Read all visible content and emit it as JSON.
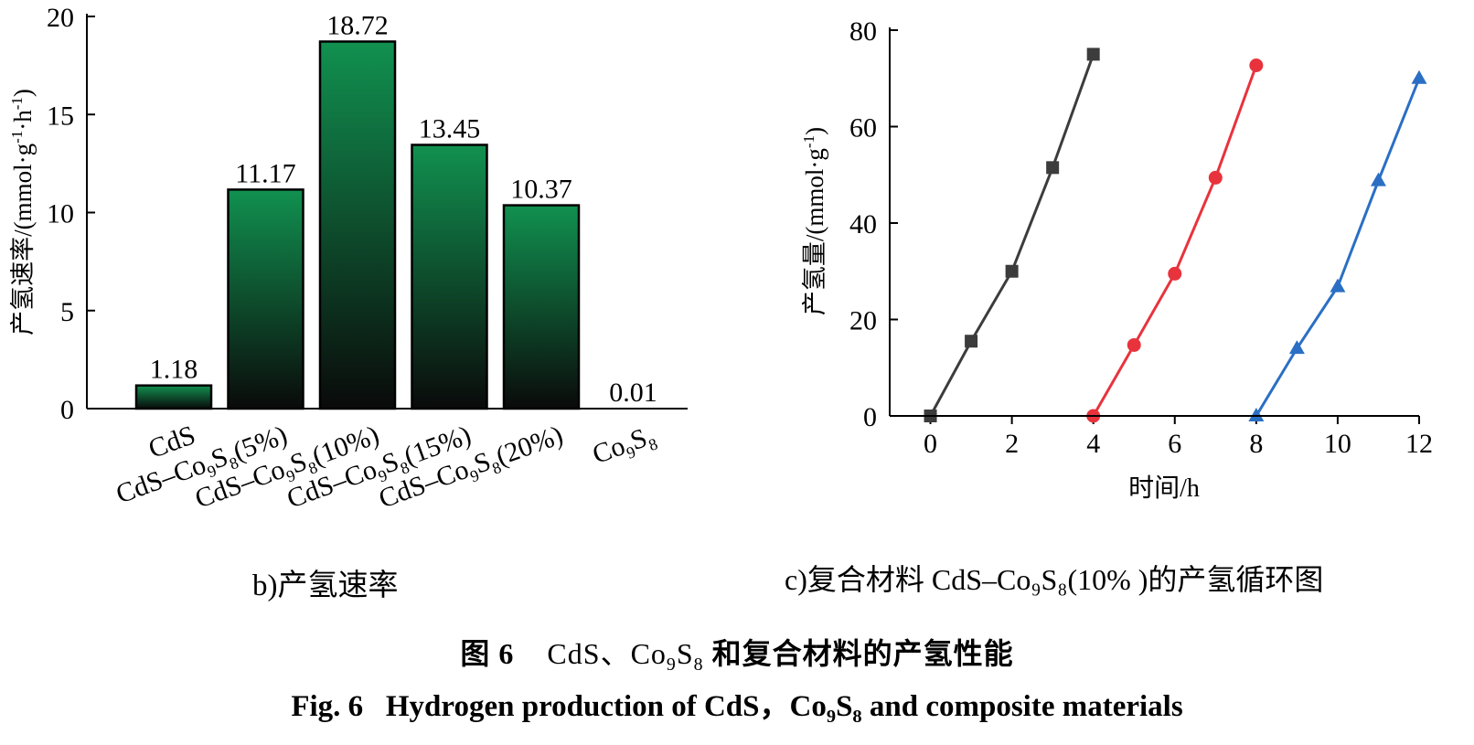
{
  "left_panel": {
    "caption": "b)产氢速率"
  },
  "right_panel": {
    "caption": "c)复合材料 CdS–Co₉S₈(10% )的产氢循环图"
  },
  "figure_caption_zh": {
    "prefix": "图 6",
    "cds": "CdS、Co",
    "sub9": "9",
    "s": "S",
    "sub8": "8",
    "suffix": "和复合材料的产氢性能"
  },
  "figure_caption_en": {
    "prefix": "Fig. 6   Hydrogen production of CdS，Co",
    "sub9": "9",
    "s": "S",
    "sub8": "8",
    "suffix": " and composite materials"
  },
  "colors": {
    "bar_top": "#119150",
    "bar_bottom": "#0a0a0a",
    "series_0": "#3c3c3c",
    "series_1": "#e8333d",
    "series_2": "#2a6fc4"
  },
  "chart_data": [
    {
      "type": "bar",
      "categories": [
        {
          "base": "CdS",
          "parts": []
        },
        {
          "base": "CdS–Co",
          "parts": [
            [
              "9",
              "S"
            ],
            [
              "8",
              "(5%)"
            ]
          ]
        },
        {
          "base": "CdS–Co",
          "parts": [
            [
              "9",
              "S"
            ],
            [
              "8",
              "(10%)"
            ]
          ]
        },
        {
          "base": "CdS–Co",
          "parts": [
            [
              "9",
              "S"
            ],
            [
              "8",
              "(15%)"
            ]
          ]
        },
        {
          "base": "CdS–Co",
          "parts": [
            [
              "9",
              "S"
            ],
            [
              "8",
              "(20%)"
            ]
          ]
        },
        {
          "base": "Co",
          "parts": [
            [
              "9",
              "S"
            ],
            [
              "8",
              ""
            ]
          ]
        }
      ],
      "values": [
        1.18,
        11.17,
        18.72,
        13.45,
        10.37,
        0.01
      ],
      "value_labels": [
        "1.18",
        "11.17",
        "18.72",
        "13.45",
        "10.37",
        "0.01"
      ],
      "ylabel": {
        "text": "产氢速率/(mmol·g",
        "sup1": "-1",
        "mid": "·h",
        "sup2": "-1",
        "end": ")"
      },
      "ylim": [
        0,
        20
      ],
      "yticks": [
        0,
        5,
        10,
        15,
        20
      ],
      "grid": false
    },
    {
      "type": "line",
      "xlabel": "时间/h",
      "ylabel": {
        "text": "产氢量/(mmol·g",
        "sup1": "-1",
        "end": ")"
      },
      "xlim": [
        -1,
        12
      ],
      "ylim": [
        0,
        80
      ],
      "xticks": [
        0,
        2,
        4,
        6,
        8,
        10,
        12
      ],
      "yticks": [
        0,
        20,
        40,
        60,
        80
      ],
      "grid": false,
      "series": [
        {
          "marker": "square",
          "x": [
            0,
            1,
            2,
            3,
            4
          ],
          "y": [
            0,
            15.5,
            30,
            51.5,
            75
          ]
        },
        {
          "marker": "circle",
          "x": [
            4,
            5,
            6,
            7,
            8
          ],
          "y": [
            0,
            14.7,
            29.5,
            49.4,
            72.7
          ]
        },
        {
          "marker": "triangle",
          "x": [
            8,
            9,
            10,
            11,
            12
          ],
          "y": [
            0,
            14,
            26.8,
            48.8,
            70
          ]
        }
      ]
    }
  ]
}
